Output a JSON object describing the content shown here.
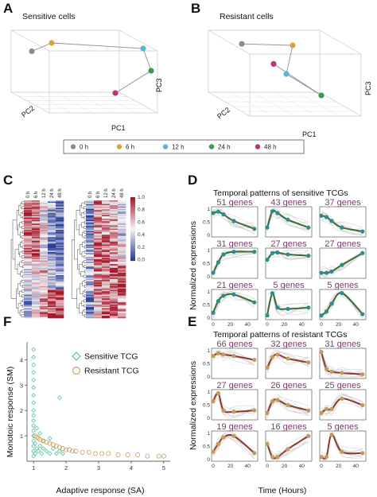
{
  "panels": {
    "A": {
      "letter": "A",
      "title": "Sensitive cells",
      "axes": [
        "PC1",
        "PC2",
        "PC3"
      ]
    },
    "B": {
      "letter": "B",
      "title": "Resistant cells",
      "axes": [
        "PC1",
        "PC2",
        "PC3"
      ]
    },
    "C": {
      "letter": "C",
      "columns": [
        "0 h",
        "6 h",
        "12 h",
        "24 h",
        "48 h"
      ],
      "colorbar_ticks": [
        "1.0",
        "0.8",
        "0.6",
        "0.4",
        "0.2",
        "0.0"
      ]
    },
    "D": {
      "letter": "D",
      "title": "Temporal patterns of sensitive TCGs",
      "ylabel": "Normalized expressions"
    },
    "E": {
      "letter": "E",
      "title": "Temporal patterns of resistant TCGs",
      "ylabel": "Normalized expressions",
      "xlabel": "Time (Hours)"
    },
    "F": {
      "letter": "F",
      "xlabel": "Adaptive response (SA)",
      "ylabel": "Monotoic response (SM)",
      "legend": [
        "Sensitive TCG",
        "Resistant TCG"
      ]
    }
  },
  "legend": [
    {
      "label": "0 h",
      "color": "#8c8c8c"
    },
    {
      "label": "6 h",
      "color": "#d9a23a"
    },
    {
      "label": "12 h",
      "color": "#5ab4d6"
    },
    {
      "label": "24 h",
      "color": "#3c9a4b"
    },
    {
      "label": "48 h",
      "color": "#b8357a"
    }
  ],
  "chart_data": [
    {
      "type": "scatter",
      "panel": "A",
      "series": [
        {
          "name": "0 h",
          "x": [
            -1.2
          ],
          "y": [
            0.9
          ]
        },
        {
          "name": "6 h",
          "x": [
            -0.7
          ],
          "y": [
            1.2
          ]
        },
        {
          "name": "12 h",
          "x": [
            1.6
          ],
          "y": [
            1.0
          ]
        },
        {
          "name": "24 h",
          "x": [
            1.8
          ],
          "y": [
            0.2
          ]
        },
        {
          "name": "48 h",
          "x": [
            0.9
          ],
          "y": [
            -0.6
          ]
        }
      ]
    },
    {
      "type": "scatter",
      "panel": "B",
      "series": [
        {
          "name": "0 h",
          "x": [
            -0.9
          ],
          "y": [
            1.3
          ]
        },
        {
          "name": "6 h",
          "x": [
            0.7
          ],
          "y": [
            1.25
          ]
        },
        {
          "name": "12 h",
          "x": [
            0.5
          ],
          "y": [
            0.25
          ]
        },
        {
          "name": "24 h",
          "x": [
            1.6
          ],
          "y": [
            -0.5
          ]
        },
        {
          "name": "48 h",
          "x": [
            0.1
          ],
          "y": [
            0.6
          ]
        }
      ]
    },
    {
      "type": "heatmap",
      "panel": "C",
      "columns": [
        "0 h",
        "6 h",
        "12 h",
        "24 h",
        "48 h"
      ],
      "range": [
        0,
        1
      ]
    },
    {
      "type": "line",
      "panel": "D",
      "x_ticks": [
        0,
        20,
        40
      ],
      "y_ticks": [
        0,
        0.2,
        0.4,
        0.6,
        0.8,
        1
      ],
      "x": [
        0,
        6,
        12,
        24,
        48
      ],
      "subplots": [
        {
          "label": "51 genes",
          "values": [
            0.85,
            0.9,
            0.8,
            0.55,
            0.25
          ]
        },
        {
          "label": "43 genes",
          "values": [
            0.3,
            0.92,
            0.85,
            0.6,
            0.3
          ]
        },
        {
          "label": "37 genes",
          "values": [
            0.75,
            0.7,
            0.55,
            0.3,
            0.15
          ]
        },
        {
          "label": "31 genes",
          "values": [
            0.15,
            0.55,
            0.85,
            0.95,
            0.95
          ]
        },
        {
          "label": "27 genes",
          "values": [
            0.65,
            0.9,
            0.92,
            0.85,
            0.8
          ]
        },
        {
          "label": "27 genes",
          "values": [
            0.15,
            0.15,
            0.2,
            0.45,
            0.9
          ]
        },
        {
          "label": "21 genes",
          "values": [
            0.2,
            0.65,
            0.85,
            0.9,
            0.6
          ]
        },
        {
          "label": "5 genes",
          "values": [
            0.1,
            0.95,
            0.4,
            0.35,
            0.4
          ]
        },
        {
          "label": "5 genes",
          "values": [
            0.1,
            0.25,
            0.55,
            0.95,
            0.15
          ]
        }
      ]
    },
    {
      "type": "line",
      "panel": "E",
      "x_ticks": [
        0,
        20,
        40
      ],
      "y_ticks": [
        0,
        0.2,
        0.4,
        0.6,
        0.8,
        1
      ],
      "x": [
        0,
        6,
        12,
        24,
        48
      ],
      "subplots": [
        {
          "label": "66 genes",
          "values": [
            0.8,
            0.9,
            0.85,
            0.8,
            0.65
          ]
        },
        {
          "label": "32 genes",
          "values": [
            0.35,
            0.75,
            0.85,
            0.7,
            0.55
          ]
        },
        {
          "label": "31 genes",
          "values": [
            0.95,
            0.3,
            0.2,
            0.15,
            0.1
          ]
        },
        {
          "label": "27 genes",
          "values": [
            0.65,
            0.95,
            0.3,
            0.25,
            0.3
          ]
        },
        {
          "label": "26 genes",
          "values": [
            0.2,
            0.65,
            0.7,
            0.5,
            0.3
          ]
        },
        {
          "label": "25 genes",
          "values": [
            0.2,
            0.35,
            0.35,
            0.75,
            0.5
          ]
        },
        {
          "label": "19 genes",
          "values": [
            0.3,
            0.6,
            0.85,
            0.9,
            0.25
          ]
        },
        {
          "label": "16 genes",
          "values": [
            0.6,
            0.1,
            0.1,
            0.4,
            0.9
          ]
        },
        {
          "label": "5 genes",
          "values": [
            0.1,
            0.1,
            0.95,
            0.3,
            0.25
          ]
        }
      ]
    },
    {
      "type": "scatter",
      "panel": "F",
      "x_ticks": [
        1,
        2,
        3,
        4,
        5
      ],
      "y_ticks": [
        1,
        2,
        3,
        4
      ],
      "xlim": [
        0.8,
        5.2
      ],
      "ylim": [
        0,
        4.7
      ],
      "series": [
        {
          "name": "Sensitive TCG",
          "color": "#5fc1a6",
          "x": [
            1,
            1,
            1,
            1,
            1,
            1,
            1,
            1,
            1,
            1,
            1,
            1,
            1,
            1,
            1,
            1,
            1,
            1,
            1.05,
            1.1,
            1.15,
            1.2,
            1.25,
            1.3,
            1.4,
            1.5,
            1.6,
            1.7,
            1.8,
            1.9,
            1.3,
            1.5,
            1.2,
            1.1,
            1.05,
            1.8
          ],
          "y": [
            4.4,
            4.1,
            3.8,
            3.5,
            3.2,
            2.9,
            2.6,
            2.3,
            2.0,
            1.8,
            1.6,
            1.4,
            1.2,
            1.0,
            0.8,
            0.6,
            0.4,
            0.2,
            0.7,
            0.5,
            0.4,
            0.6,
            0.3,
            0.5,
            0.4,
            0.3,
            0.5,
            0.3,
            0.4,
            0.3,
            0.8,
            0.9,
            1.1,
            1.3,
            0.3,
            2.5
          ]
        },
        {
          "name": "Resistant TCG",
          "color": "#c9a15a",
          "x": [
            1.05,
            1.1,
            1.15,
            1.2,
            1.3,
            1.4,
            1.5,
            1.6,
            1.7,
            1.8,
            1.9,
            2.0,
            2.1,
            2.2,
            2.3,
            2.5,
            2.7,
            2.9,
            3.1,
            3.3,
            3.6,
            3.9,
            4.2,
            4.5,
            4.85,
            5.0
          ],
          "y": [
            1.0,
            0.95,
            0.9,
            0.85,
            0.8,
            0.75,
            0.7,
            0.65,
            0.6,
            0.55,
            0.5,
            0.45,
            0.45,
            0.4,
            0.4,
            0.35,
            0.35,
            0.3,
            0.3,
            0.3,
            0.25,
            0.25,
            0.25,
            0.2,
            0.2,
            0.2
          ]
        }
      ]
    }
  ]
}
